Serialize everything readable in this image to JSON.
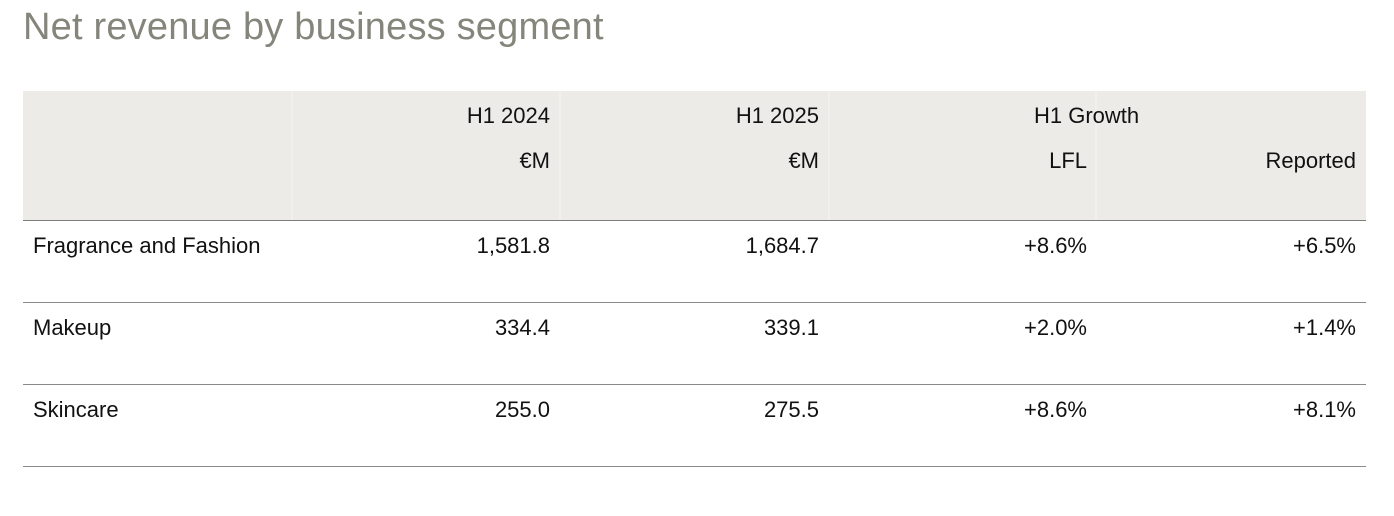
{
  "title": "Net revenue by business segment",
  "table": {
    "headers": {
      "h1_2024": "H1 2024",
      "h1_2025": "H1 2025",
      "growth": "H1  Growth",
      "unit_2024": "€M",
      "unit_2025": "€M",
      "lfl": "LFL",
      "reported": "Reported"
    },
    "rows": [
      {
        "segment": "Fragrance and Fashion",
        "h1_2024": "1,581.8",
        "h1_2025": "1,684.7",
        "lfl": "+8.6%",
        "reported": "+6.5%"
      },
      {
        "segment": "Makeup",
        "h1_2024": "334.4",
        "h1_2025": "339.1",
        "lfl": "+2.0%",
        "reported": "+1.4%"
      },
      {
        "segment": "Skincare",
        "h1_2024": "255.0",
        "h1_2025": "275.5",
        "lfl": "+8.6%",
        "reported": "+8.1%"
      }
    ]
  }
}
